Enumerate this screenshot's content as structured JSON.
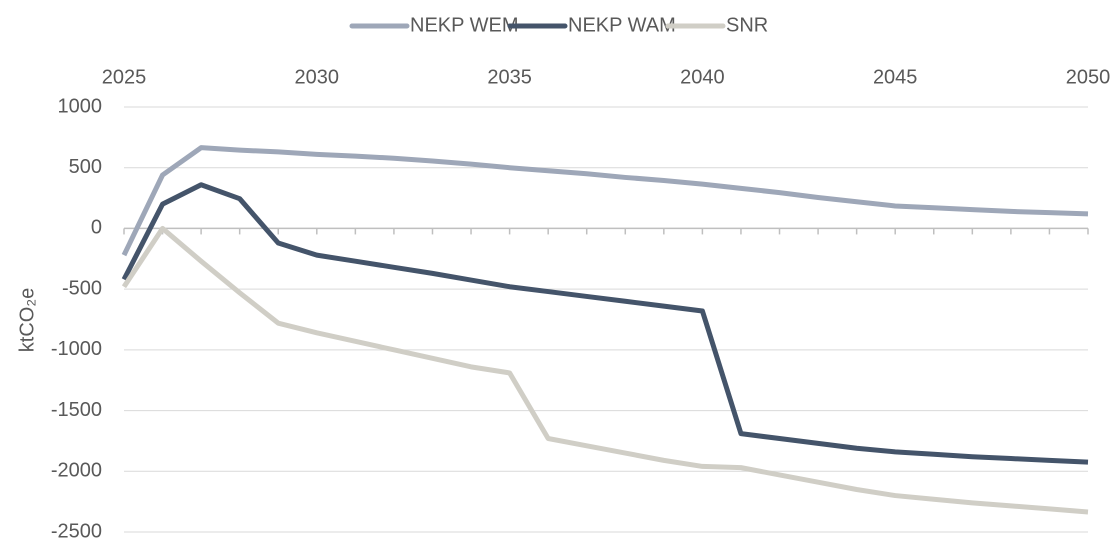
{
  "chart_data": {
    "type": "line",
    "y_label": "ktCO₂e",
    "x": [
      2025,
      2026,
      2027,
      2028,
      2029,
      2030,
      2031,
      2032,
      2033,
      2034,
      2035,
      2036,
      2037,
      2038,
      2039,
      2040,
      2041,
      2042,
      2043,
      2044,
      2045,
      2046,
      2047,
      2048,
      2049,
      2050
    ],
    "series": [
      {
        "name": "NEKP WEM",
        "color": "#9ea7b8",
        "values": [
          -220,
          440,
          665,
          645,
          630,
          610,
          595,
          578,
          555,
          530,
          500,
          475,
          450,
          420,
          395,
          365,
          330,
          295,
          255,
          220,
          185,
          170,
          155,
          140,
          130,
          120
        ]
      },
      {
        "name": "NEKP WAM",
        "color": "#44546a",
        "values": [
          -420,
          200,
          360,
          245,
          -120,
          -220,
          -270,
          -320,
          -370,
          -425,
          -480,
          -520,
          -560,
          -600,
          -640,
          -680,
          -1690,
          -1730,
          -1770,
          -1810,
          -1840,
          -1860,
          -1880,
          -1895,
          -1910,
          -1925
        ]
      },
      {
        "name": "SNR",
        "color": "#d0cec6",
        "values": [
          -480,
          0,
          -270,
          -530,
          -780,
          -860,
          -930,
          -1000,
          -1070,
          -1140,
          -1190,
          -1730,
          -1790,
          -1850,
          -1910,
          -1960,
          -1970,
          -2030,
          -2090,
          -2150,
          -2200,
          -2230,
          -2260,
          -2285,
          -2310,
          -2335
        ]
      }
    ],
    "xlim": [
      2025,
      2050
    ],
    "xticks": [
      2025,
      2030,
      2035,
      2040,
      2045,
      2050
    ],
    "ylim": [
      -2500,
      1000
    ],
    "yticks": [
      -2500,
      -2000,
      -1500,
      -1000,
      -500,
      0,
      500,
      1000
    ],
    "grid": true,
    "legend": "top"
  }
}
